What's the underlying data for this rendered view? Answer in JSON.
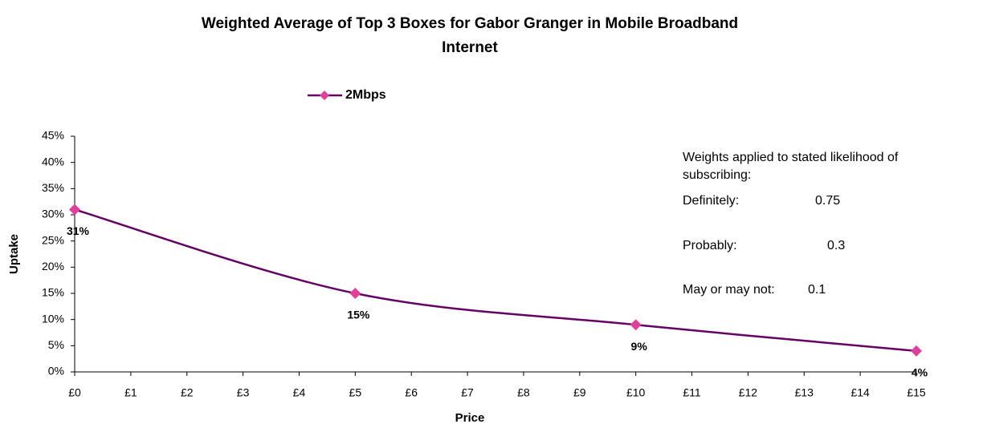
{
  "chart_data": {
    "type": "line",
    "title": "Weighted Average of Top 3 Boxes for Gabor Granger in Mobile Broadband",
    "subtitle": "Internet",
    "x_label": "Price",
    "y_label": "Uptake",
    "x": [
      0,
      5,
      10,
      15
    ],
    "series": [
      {
        "name": "2Mbps",
        "color": "#660066",
        "marker_color": "#e0409a",
        "values": [
          31,
          15,
          9,
          4
        ],
        "value_labels": [
          "31%",
          "15%",
          "9%",
          "4%"
        ]
      }
    ],
    "xlim": [
      0,
      15
    ],
    "xticks": [
      {
        "value": 0,
        "label": "£0"
      },
      {
        "value": 1,
        "label": "£1"
      },
      {
        "value": 2,
        "label": "£2"
      },
      {
        "value": 3,
        "label": "£3"
      },
      {
        "value": 4,
        "label": "£4"
      },
      {
        "value": 5,
        "label": "£5"
      },
      {
        "value": 6,
        "label": "£6"
      },
      {
        "value": 7,
        "label": "£7"
      },
      {
        "value": 8,
        "label": "£8"
      },
      {
        "value": 9,
        "label": "£9"
      },
      {
        "value": 10,
        "label": "£10"
      },
      {
        "value": 11,
        "label": "£11"
      },
      {
        "value": 12,
        "label": "£12"
      },
      {
        "value": 13,
        "label": "£13"
      },
      {
        "value": 14,
        "label": "£14"
      },
      {
        "value": 15,
        "label": "£15"
      }
    ],
    "ylim": [
      0,
      45
    ],
    "yticks": [
      {
        "value": 0,
        "label": "0%"
      },
      {
        "value": 5,
        "label": "5%"
      },
      {
        "value": 10,
        "label": "10%"
      },
      {
        "value": 15,
        "label": "15%"
      },
      {
        "value": 20,
        "label": "20%"
      },
      {
        "value": 25,
        "label": "25%"
      },
      {
        "value": 30,
        "label": "30%"
      },
      {
        "value": 35,
        "label": "35%"
      },
      {
        "value": 40,
        "label": "40%"
      },
      {
        "value": 45,
        "label": "45%"
      }
    ],
    "legend_position": "top",
    "grid": false,
    "annotations": {
      "heading_1": "Weights applied to stated likelihood of",
      "heading_2": "subscribing:",
      "rows": [
        [
          "Definitely:",
          "0.75"
        ],
        [
          "Probably:",
          "0.3"
        ],
        [
          "May or may not:",
          "0.1"
        ]
      ]
    }
  }
}
